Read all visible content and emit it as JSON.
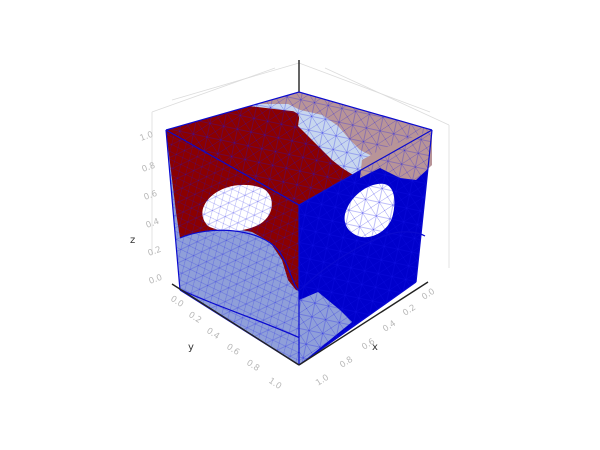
{
  "axes": {
    "x_label": "x",
    "y_label": "y",
    "z_label": "z",
    "x_ticks": [
      "0.0",
      "0.2",
      "0.4",
      "0.6",
      "0.8",
      "1.0"
    ],
    "y_ticks": [
      "0.0",
      "0.2",
      "0.4",
      "0.6",
      "0.8",
      "1.0"
    ],
    "z_ticks": [
      "0.0",
      "0.2",
      "0.4",
      "0.6",
      "0.8",
      "1.0"
    ],
    "range": [
      0,
      1
    ],
    "grid": true
  },
  "colors": {
    "dark_red": "#8b0000",
    "blue": "#0000cc",
    "light_blue": "#8f9fd9",
    "pale_blue": "#c7d6ee",
    "rosy_brown": "#b89498",
    "mesh_line": "#1414e6"
  }
}
